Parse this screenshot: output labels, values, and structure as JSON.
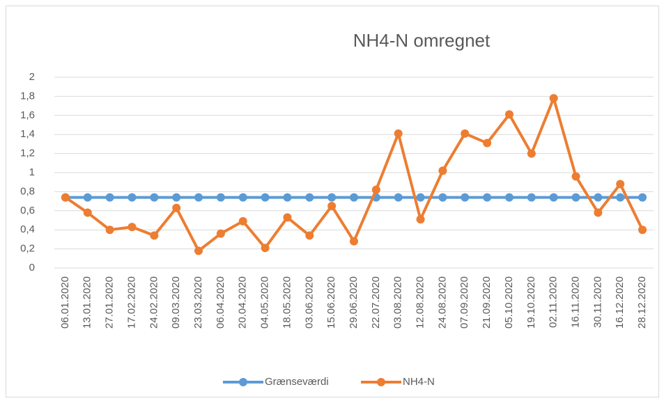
{
  "chart_data": {
    "type": "line",
    "title": "NH4-N omregnet",
    "categories": [
      "06.01.2020",
      "13.01.2020",
      "27.01.2020",
      "17.02.2020",
      "24.02.2020",
      "09.03.2020",
      "23.03.2020",
      "06.04.2020",
      "20.04.2020",
      "04.05.2020",
      "18.05.2020",
      "03.06.2020",
      "15.06.2020",
      "29.06.2020",
      "22.07.2020",
      "03.08.2020",
      "12.08.2020",
      "24.08.2020",
      "07.09.2020",
      "21.09.2020",
      "05.10.2020",
      "19.10.2020",
      "02.11.2020",
      "16.11.2020",
      "30.11.2020",
      "16.12.2020",
      "28.12.2020"
    ],
    "series": [
      {
        "name": "Grænseværdi",
        "color": "#5b9bd5",
        "values": [
          0.74,
          0.74,
          0.74,
          0.74,
          0.74,
          0.74,
          0.74,
          0.74,
          0.74,
          0.74,
          0.74,
          0.74,
          0.74,
          0.74,
          0.74,
          0.74,
          0.74,
          0.74,
          0.74,
          0.74,
          0.74,
          0.74,
          0.74,
          0.74,
          0.74,
          0.74,
          0.74
        ]
      },
      {
        "name": "NH4-N",
        "color": "#ed7d31",
        "values": [
          0.74,
          0.58,
          0.4,
          0.43,
          0.34,
          0.63,
          0.18,
          0.36,
          0.49,
          0.21,
          0.53,
          0.34,
          0.65,
          0.28,
          0.82,
          1.41,
          0.51,
          1.02,
          1.41,
          1.31,
          1.61,
          1.2,
          1.78,
          0.96,
          0.58,
          0.88,
          0.4
        ]
      }
    ],
    "ylim": [
      0,
      2
    ],
    "yticks": [
      0,
      {
        "value": 0.2,
        "label": "0,2"
      },
      {
        "value": 0.4,
        "label": "0,4"
      },
      {
        "value": 0.6,
        "label": "0,6"
      },
      {
        "value": 0.8,
        "label": "0,8"
      },
      1,
      {
        "value": 1.2,
        "label": "1,2"
      },
      {
        "value": 1.4,
        "label": "1,4"
      },
      {
        "value": 1.6,
        "label": "1,6"
      },
      {
        "value": 1.8,
        "label": "1,8"
      },
      2
    ],
    "grid": true,
    "legend": "bottom"
  }
}
